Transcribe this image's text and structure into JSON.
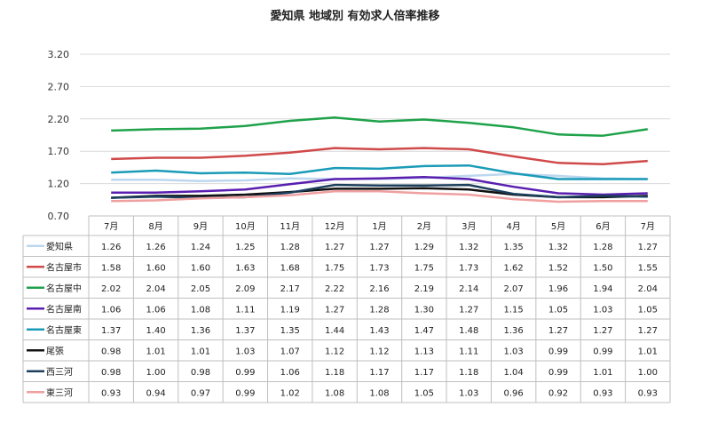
{
  "chart_data": {
    "type": "line",
    "title": "愛知県 地域別 有効求人倍率推移",
    "categories": [
      "7月",
      "8月",
      "9月",
      "10月",
      "11月",
      "12月",
      "1月",
      "2月",
      "3月",
      "4月",
      "5月",
      "6月",
      "7月"
    ],
    "ylim": [
      0.7,
      3.2
    ],
    "yticks": [
      "0.70",
      "1.20",
      "1.70",
      "2.20",
      "2.70",
      "3.20"
    ],
    "grid": true,
    "legend": "table-bottom",
    "series": [
      {
        "name": "愛知県",
        "color": "#bdd7ee",
        "values": [
          1.26,
          1.26,
          1.24,
          1.25,
          1.28,
          1.27,
          1.27,
          1.29,
          1.32,
          1.35,
          1.32,
          1.28,
          1.27
        ],
        "labels": [
          "1.26",
          "1.26",
          "1.24",
          "1.25",
          "1.28",
          "1.27",
          "1.27",
          "1.29",
          "1.32",
          "1.35",
          "1.32",
          "1.28",
          "1.27"
        ]
      },
      {
        "name": "名古屋市",
        "color": "#d04a4a",
        "values": [
          1.58,
          1.6,
          1.6,
          1.63,
          1.68,
          1.75,
          1.73,
          1.75,
          1.73,
          1.62,
          1.52,
          1.5,
          1.55
        ],
        "labels": [
          "1.58",
          "1.60",
          "1.60",
          "1.63",
          "1.68",
          "1.75",
          "1.73",
          "1.75",
          "1.73",
          "1.62",
          "1.52",
          "1.50",
          "1.55"
        ]
      },
      {
        "name": "名古屋中",
        "color": "#1fa24a",
        "values": [
          2.02,
          2.04,
          2.05,
          2.09,
          2.17,
          2.22,
          2.16,
          2.19,
          2.14,
          2.07,
          1.96,
          1.94,
          2.04
        ],
        "labels": [
          "2.02",
          "2.04",
          "2.05",
          "2.09",
          "2.17",
          "2.22",
          "2.16",
          "2.19",
          "2.14",
          "2.07",
          "1.96",
          "1.94",
          "2.04"
        ]
      },
      {
        "name": "名古屋南",
        "color": "#5a1fb0",
        "values": [
          1.06,
          1.06,
          1.08,
          1.11,
          1.19,
          1.27,
          1.28,
          1.3,
          1.27,
          1.15,
          1.05,
          1.03,
          1.05
        ],
        "labels": [
          "1.06",
          "1.06",
          "1.08",
          "1.11",
          "1.19",
          "1.27",
          "1.28",
          "1.30",
          "1.27",
          "1.15",
          "1.05",
          "1.03",
          "1.05"
        ]
      },
      {
        "name": "名古屋東",
        "color": "#1a9bb8",
        "values": [
          1.37,
          1.4,
          1.36,
          1.37,
          1.35,
          1.44,
          1.43,
          1.47,
          1.48,
          1.36,
          1.27,
          1.27,
          1.27
        ],
        "labels": [
          "1.37",
          "1.40",
          "1.36",
          "1.37",
          "1.35",
          "1.44",
          "1.43",
          "1.47",
          "1.48",
          "1.36",
          "1.27",
          "1.27",
          "1.27"
        ]
      },
      {
        "name": "尾張",
        "color": "#111111",
        "values": [
          0.98,
          1.01,
          1.01,
          1.03,
          1.07,
          1.12,
          1.12,
          1.13,
          1.11,
          1.03,
          0.99,
          0.99,
          1.01
        ],
        "labels": [
          "0.98",
          "1.01",
          "1.01",
          "1.03",
          "1.07",
          "1.12",
          "1.12",
          "1.13",
          "1.11",
          "1.03",
          "0.99",
          "0.99",
          "1.01"
        ]
      },
      {
        "name": "西三河",
        "color": "#1c3f5c",
        "values": [
          0.98,
          1.0,
          0.98,
          0.99,
          1.06,
          1.18,
          1.17,
          1.17,
          1.18,
          1.04,
          0.99,
          1.01,
          1.0
        ],
        "labels": [
          "0.98",
          "1.00",
          "0.98",
          "0.99",
          "1.06",
          "1.18",
          "1.17",
          "1.17",
          "1.18",
          "1.04",
          "0.99",
          "1.01",
          "1.00"
        ]
      },
      {
        "name": "東三河",
        "color": "#f0a0a0",
        "values": [
          0.93,
          0.94,
          0.97,
          0.99,
          1.02,
          1.08,
          1.08,
          1.05,
          1.03,
          0.96,
          0.92,
          0.93,
          0.93
        ],
        "labels": [
          "0.93",
          "0.94",
          "0.97",
          "0.99",
          "1.02",
          "1.08",
          "1.08",
          "1.05",
          "1.03",
          "0.96",
          "0.92",
          "0.93",
          "0.93"
        ]
      }
    ]
  }
}
